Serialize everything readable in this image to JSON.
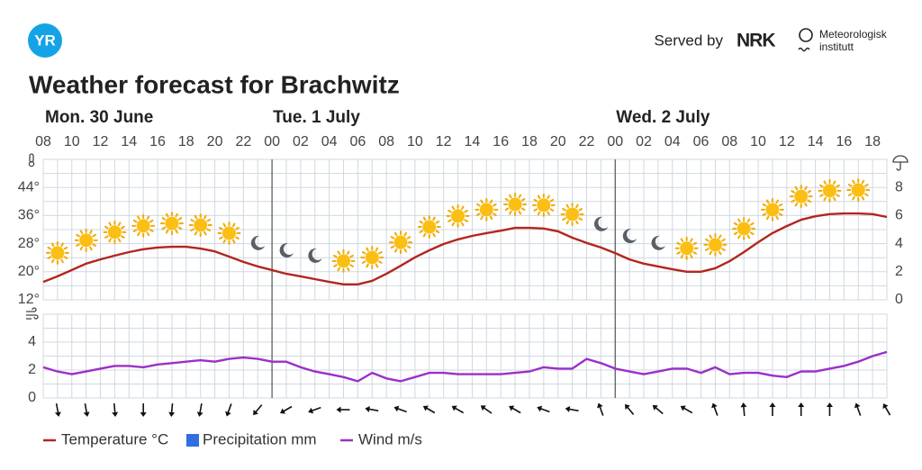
{
  "header": {
    "logo": "YR",
    "served_by": "Served by",
    "nrk": "NRK",
    "met": [
      "Meteorologisk",
      "institutt"
    ]
  },
  "chart_data": {
    "type": "line",
    "title": "Weather forecast for Brachwitz",
    "days": [
      "Mon. 30 June",
      "Tue. 1 July",
      "Wed. 2 July"
    ],
    "hour_labels": [
      "08",
      "10",
      "12",
      "14",
      "16",
      "18",
      "20",
      "22",
      "00",
      "02",
      "04",
      "06",
      "08",
      "10",
      "12",
      "14",
      "16",
      "18",
      "20",
      "22",
      "00",
      "02",
      "04",
      "06",
      "08",
      "10",
      "12",
      "14",
      "16",
      "18"
    ],
    "ylim": [
      12,
      52
    ],
    "yticks": [
      {
        "value": 12,
        "label": "12°"
      },
      {
        "value": 20,
        "label": "20°"
      },
      {
        "value": 28,
        "label": "28°"
      },
      {
        "value": 36,
        "label": "36°"
      },
      {
        "value": 44,
        "label": "44°"
      }
    ],
    "yminor": [
      16,
      24,
      32,
      40,
      48
    ],
    "y2lim": [
      0,
      10
    ],
    "y2ticks": [
      0,
      2,
      4,
      6,
      8
    ],
    "wind_ylim": [
      0,
      6
    ],
    "wind_yticks": [
      0,
      2,
      4
    ],
    "wind_yminor": [
      1,
      3,
      5
    ],
    "grid": true,
    "series": [
      {
        "name": "Temperature °C",
        "color": "#b3261e",
        "axis": "y",
        "values": [
          17.1,
          18.7,
          20.5,
          22.3,
          23.5,
          24.6,
          25.6,
          26.4,
          26.9,
          27.1,
          27.1,
          26.6,
          25.8,
          24.3,
          22.8,
          21.5,
          20.5,
          19.4,
          18.7,
          17.9,
          17.1,
          16.4,
          16.4,
          17.4,
          19.4,
          21.7,
          24.1,
          26.1,
          27.9,
          29.2,
          30.2,
          31.0,
          31.7,
          32.5,
          32.5,
          32.3,
          31.5,
          29.7,
          28.2,
          26.9,
          25.3,
          23.5,
          22.3,
          21.5,
          20.7,
          20.0,
          20.0,
          21.0,
          23.0,
          25.6,
          28.4,
          31.0,
          33.0,
          34.8,
          35.8,
          36.4,
          36.6,
          36.6,
          36.4,
          35.6
        ]
      },
      {
        "name": "Precipitation mm",
        "color": "#2f6fdf",
        "axis": "y2",
        "values": [
          0,
          0,
          0,
          0,
          0,
          0,
          0,
          0,
          0,
          0,
          0,
          0,
          0,
          0,
          0,
          0,
          0,
          0,
          0,
          0,
          0,
          0,
          0,
          0,
          0,
          0,
          0,
          0,
          0,
          0,
          0,
          0,
          0,
          0,
          0,
          0,
          0,
          0,
          0,
          0,
          0,
          0,
          0,
          0,
          0,
          0,
          0,
          0,
          0,
          0,
          0,
          0,
          0,
          0,
          0,
          0,
          0,
          0,
          0,
          0
        ]
      },
      {
        "name": "Wind m/s",
        "color": "#9b2fc9",
        "axis": "wind",
        "values": [
          2.2,
          1.9,
          1.7,
          1.9,
          2.1,
          2.3,
          2.3,
          2.2,
          2.4,
          2.5,
          2.6,
          2.7,
          2.6,
          2.8,
          2.9,
          2.8,
          2.6,
          2.6,
          2.2,
          1.9,
          1.7,
          1.5,
          1.2,
          1.8,
          1.4,
          1.2,
          1.5,
          1.8,
          1.8,
          1.7,
          1.7,
          1.7,
          1.7,
          1.8,
          1.9,
          2.2,
          2.1,
          2.1,
          2.8,
          2.5,
          2.1,
          1.9,
          1.7,
          1.9,
          2.1,
          2.1,
          1.8,
          2.2,
          1.7,
          1.8,
          1.8,
          1.6,
          1.5,
          1.9,
          1.9,
          2.1,
          2.3,
          2.6,
          3.0,
          3.3
        ]
      }
    ],
    "symbols": [
      "sun",
      "sun",
      "sun",
      "sun",
      "sun",
      "sun",
      "sun",
      "moon",
      "moon",
      "moon",
      "sun",
      "sun",
      "sun",
      "sun",
      "sun",
      "sun",
      "sun",
      "sun",
      "sun",
      "moon",
      "moon",
      "moon",
      "sun",
      "sun",
      "sun",
      "sun",
      "sun",
      "sun",
      "sun"
    ],
    "wind_direction": [
      170,
      170,
      175,
      180,
      185,
      190,
      200,
      220,
      240,
      250,
      270,
      280,
      290,
      300,
      300,
      305,
      300,
      290,
      280,
      340,
      320,
      310,
      300,
      340,
      355,
      0,
      0,
      0,
      340,
      330
    ]
  }
}
